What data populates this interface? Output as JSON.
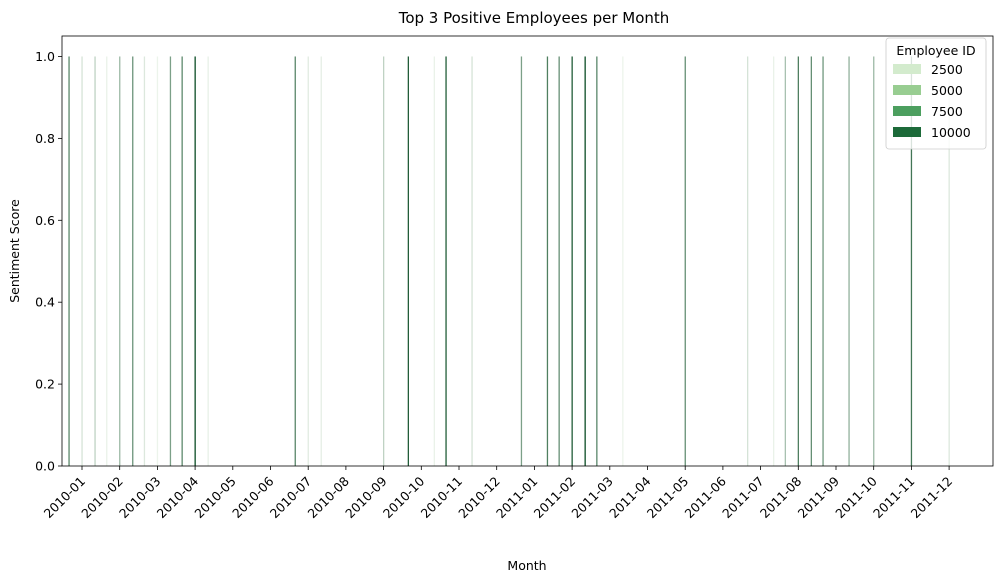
{
  "chart_data": {
    "type": "bar",
    "title": "Top 3 Positive Employees per Month",
    "xlabel": "Month",
    "ylabel": "Sentiment Score",
    "ylim": [
      0,
      1.05
    ],
    "yticks": [
      "0.0",
      "0.2",
      "0.4",
      "0.6",
      "0.8",
      "1.0"
    ],
    "categories": [
      "2010-01",
      "2010-02",
      "2010-03",
      "2010-04",
      "2010-05",
      "2010-06",
      "2010-07",
      "2010-08",
      "2010-09",
      "2010-10",
      "2010-11",
      "2010-12",
      "2011-01",
      "2011-02",
      "2011-03",
      "2011-04",
      "2011-05",
      "2011-06",
      "2011-07",
      "2011-08",
      "2011-09",
      "2011-10",
      "2011-11",
      "2011-12"
    ],
    "legend": {
      "title": "Employee ID",
      "placement": "top-right",
      "entries": [
        {
          "label": "2500",
          "color": "#d3ebcd"
        },
        {
          "label": "5000",
          "color": "#98cd91"
        },
        {
          "label": "7500",
          "color": "#4c9f5f"
        },
        {
          "label": "10000",
          "color": "#1c6a39"
        }
      ]
    },
    "color_scale": {
      "min_id": 0,
      "max_id": 11000,
      "light": "#f7fcf5",
      "dark": "#00441b"
    },
    "bars": [
      {
        "month": "2010-01",
        "employee_id": 7000,
        "value": 1.0
      },
      {
        "month": "2010-01",
        "employee_id": 1500,
        "value": 1.0
      },
      {
        "month": "2010-01",
        "employee_id": 2500,
        "value": 1.0
      },
      {
        "month": "2010-02",
        "employee_id": 600,
        "value": 1.0
      },
      {
        "month": "2010-02",
        "employee_id": 4000,
        "value": 1.0
      },
      {
        "month": "2010-02",
        "employee_id": 6200,
        "value": 1.0
      },
      {
        "month": "2010-03",
        "employee_id": 1200,
        "value": 1.0
      },
      {
        "month": "2010-03",
        "employee_id": 500,
        "value": 1.0
      },
      {
        "month": "2010-03",
        "employee_id": 5500,
        "value": 1.0
      },
      {
        "month": "2010-04",
        "employee_id": 6800,
        "value": 1.0
      },
      {
        "month": "2010-04",
        "employee_id": 10500,
        "value": 1.0
      },
      {
        "month": "2010-04",
        "employee_id": 700,
        "value": 1.0
      },
      {
        "month": "2010-07",
        "employee_id": 7000,
        "value": 1.0
      },
      {
        "month": "2010-07",
        "employee_id": 1000,
        "value": 1.0
      },
      {
        "month": "2010-07",
        "employee_id": 800,
        "value": 1.0
      },
      {
        "month": "2010-09",
        "employee_id": 2500,
        "value": 1.0
      },
      {
        "month": "2010-10",
        "employee_id": 9500,
        "value": 1.0
      },
      {
        "month": "2010-10",
        "employee_id": 600,
        "value": 1.0
      },
      {
        "month": "2010-11",
        "employee_id": 9500,
        "value": 1.0
      },
      {
        "month": "2010-11",
        "employee_id": 1500,
        "value": 1.0
      },
      {
        "month": "2011-01",
        "employee_id": 5500,
        "value": 1.0
      },
      {
        "month": "2011-01",
        "employee_id": 7500,
        "value": 1.0
      },
      {
        "month": "2011-02",
        "employee_id": 6500,
        "value": 1.0
      },
      {
        "month": "2011-02",
        "employee_id": 9500,
        "value": 1.0
      },
      {
        "month": "2011-02",
        "employee_id": 10500,
        "value": 1.0
      },
      {
        "month": "2011-03",
        "employee_id": 7000,
        "value": 1.0
      },
      {
        "month": "2011-03",
        "employee_id": 500,
        "value": 1.0
      },
      {
        "month": "2011-05",
        "employee_id": 6500,
        "value": 1.0
      },
      {
        "month": "2011-07",
        "employee_id": 1500,
        "value": 1.0
      },
      {
        "month": "2011-07",
        "employee_id": 600,
        "value": 1.0
      },
      {
        "month": "2011-08",
        "employee_id": 3500,
        "value": 1.0
      },
      {
        "month": "2011-08",
        "employee_id": 7500,
        "value": 1.0
      },
      {
        "month": "2011-08",
        "employee_id": 6500,
        "value": 1.0
      },
      {
        "month": "2011-09",
        "employee_id": 6000,
        "value": 1.0
      },
      {
        "month": "2011-09",
        "employee_id": 4500,
        "value": 1.0
      },
      {
        "month": "2011-10",
        "employee_id": 4000,
        "value": 1.0
      },
      {
        "month": "2011-11",
        "employee_id": 8000,
        "value": 1.0
      },
      {
        "month": "2011-12",
        "employee_id": 1200,
        "value": 1.0
      }
    ]
  }
}
